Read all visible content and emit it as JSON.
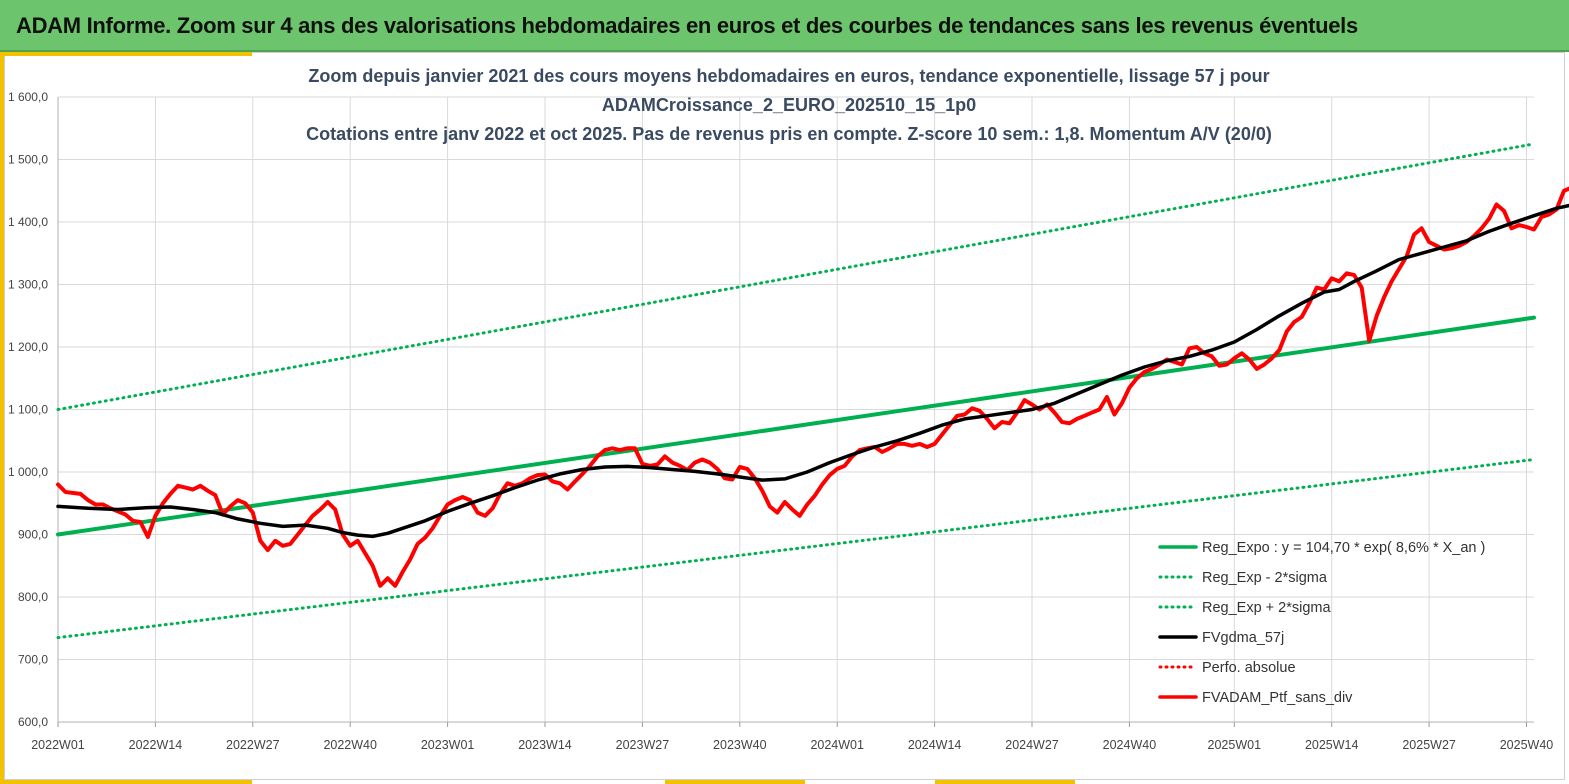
{
  "header": {
    "title": "ADAM Informe. Zoom sur 4 ans des valorisations hebdomadaires en euros et des courbes de tendances sans les revenus éventuels"
  },
  "colors": {
    "header_bg": "#6cc46c",
    "accent": "#f2c200",
    "green": "#00b050",
    "red": "#ff0000",
    "black": "#000000"
  },
  "chart_data": {
    "type": "line",
    "title": [
      "Zoom depuis janvier 2021 des cours moyens hebdomadaires  en euros, tendance exponentielle, lissage 57 j pour",
      "ADAMCroissance_2_EURO_202510_15_1p0",
      "Cotations  entre janv 2022 et oct 2025. Pas de revenus pris en compte. Z-score 10 sem.: 1,8. Momentum A/V (20/0)"
    ],
    "x_range": [
      0,
      197
    ],
    "ylim": [
      600,
      1600
    ],
    "y_ticks": [
      "600,0",
      "700,0",
      "800,0",
      "900,0",
      "1 000,0",
      "1 100,0",
      "1 200,0",
      "1 300,0",
      "1 400,0",
      "1 500,0",
      "1 600,0"
    ],
    "x_ticks": [
      {
        "index": 0,
        "label": "2022W01"
      },
      {
        "index": 13,
        "label": "2022W14"
      },
      {
        "index": 26,
        "label": "2022W27"
      },
      {
        "index": 39,
        "label": "2022W40"
      },
      {
        "index": 52,
        "label": "2023W01"
      },
      {
        "index": 65,
        "label": "2023W14"
      },
      {
        "index": 78,
        "label": "2023W27"
      },
      {
        "index": 91,
        "label": "2023W40"
      },
      {
        "index": 104,
        "label": "2024W01"
      },
      {
        "index": 117,
        "label": "2024W14"
      },
      {
        "index": 130,
        "label": "2024W27"
      },
      {
        "index": 143,
        "label": "2024W40"
      },
      {
        "index": 157,
        "label": "2025W01"
      },
      {
        "index": 170,
        "label": "2025W14"
      },
      {
        "index": 183,
        "label": "2025W27"
      },
      {
        "index": 196,
        "label": "2025W40"
      }
    ],
    "grid": true,
    "legend_position": "bottom-right",
    "series": [
      {
        "name": "Reg_Expo : y = 104,70 * exp( 8,6% *  X_an )",
        "color": "#00b050",
        "style": "solid",
        "width": 4,
        "points": [
          [
            0,
            900
          ],
          [
            197,
            1247
          ]
        ]
      },
      {
        "name": "Reg_Exp - 2*sigma",
        "color": "#00b050",
        "style": "dotted",
        "width": 3,
        "points": [
          [
            0,
            735
          ],
          [
            197,
            1020
          ]
        ]
      },
      {
        "name": "Reg_Exp + 2*sigma",
        "color": "#00b050",
        "style": "dotted",
        "width": 3,
        "points": [
          [
            0,
            1100
          ],
          [
            197,
            1525
          ]
        ]
      },
      {
        "name": "FVgdma_57j",
        "color": "#000000",
        "style": "solid",
        "width": 3.5,
        "points": [
          [
            0,
            945
          ],
          [
            4,
            942
          ],
          [
            8,
            940
          ],
          [
            12,
            943
          ],
          [
            15,
            944
          ],
          [
            18,
            940
          ],
          [
            21,
            935
          ],
          [
            24,
            925
          ],
          [
            27,
            918
          ],
          [
            30,
            913
          ],
          [
            33,
            915
          ],
          [
            36,
            910
          ],
          [
            38,
            903
          ],
          [
            40,
            899
          ],
          [
            42,
            897
          ],
          [
            44,
            902
          ],
          [
            46,
            910
          ],
          [
            49,
            922
          ],
          [
            52,
            937
          ],
          [
            55,
            950
          ],
          [
            58,
            962
          ],
          [
            61,
            975
          ],
          [
            64,
            987
          ],
          [
            67,
            997
          ],
          [
            70,
            1004
          ],
          [
            73,
            1008
          ],
          [
            76,
            1009
          ],
          [
            79,
            1007
          ],
          [
            82,
            1004
          ],
          [
            85,
            1001
          ],
          [
            88,
            997
          ],
          [
            91,
            992
          ],
          [
            94,
            987
          ],
          [
            97,
            989
          ],
          [
            100,
            1000
          ],
          [
            103,
            1015
          ],
          [
            106,
            1028
          ],
          [
            109,
            1040
          ],
          [
            112,
            1050
          ],
          [
            115,
            1062
          ],
          [
            118,
            1075
          ],
          [
            121,
            1085
          ],
          [
            124,
            1090
          ],
          [
            127,
            1095
          ],
          [
            130,
            1100
          ],
          [
            133,
            1110
          ],
          [
            136,
            1125
          ],
          [
            139,
            1140
          ],
          [
            142,
            1155
          ],
          [
            145,
            1168
          ],
          [
            148,
            1178
          ],
          [
            151,
            1185
          ],
          [
            154,
            1195
          ],
          [
            157,
            1208
          ],
          [
            160,
            1228
          ],
          [
            163,
            1250
          ],
          [
            166,
            1270
          ],
          [
            169,
            1288
          ],
          [
            171,
            1292
          ],
          [
            173,
            1305
          ],
          [
            176,
            1322
          ],
          [
            179,
            1340
          ],
          [
            182,
            1350
          ],
          [
            185,
            1360
          ],
          [
            188,
            1370
          ],
          [
            191,
            1385
          ],
          [
            194,
            1398
          ],
          [
            197,
            1410
          ],
          [
            200,
            1422
          ],
          [
            203,
            1430
          ]
        ]
      },
      {
        "name": "Perfo. absolue",
        "color": "#ff0000",
        "style": "dotted",
        "width": 3,
        "points": []
      },
      {
        "name": "FVADAM_Ptf_sans_div",
        "color": "#ff0000",
        "style": "solid",
        "width": 4,
        "points": [
          [
            0,
            980
          ],
          [
            1,
            968
          ],
          [
            3,
            965
          ],
          [
            4,
            955
          ],
          [
            5,
            948
          ],
          [
            6,
            948
          ],
          [
            7,
            942
          ],
          [
            8,
            937
          ],
          [
            9,
            932
          ],
          [
            10,
            922
          ],
          [
            11,
            920
          ],
          [
            12,
            896
          ],
          [
            13,
            930
          ],
          [
            14,
            950
          ],
          [
            15,
            965
          ],
          [
            16,
            978
          ],
          [
            17,
            975
          ],
          [
            18,
            972
          ],
          [
            19,
            978
          ],
          [
            20,
            970
          ],
          [
            21,
            963
          ],
          [
            22,
            932
          ],
          [
            23,
            945
          ],
          [
            24,
            955
          ],
          [
            25,
            950
          ],
          [
            26,
            935
          ],
          [
            27,
            890
          ],
          [
            28,
            875
          ],
          [
            29,
            890
          ],
          [
            30,
            882
          ],
          [
            31,
            885
          ],
          [
            32,
            900
          ],
          [
            33,
            915
          ],
          [
            34,
            930
          ],
          [
            35,
            940
          ],
          [
            36,
            952
          ],
          [
            37,
            940
          ],
          [
            38,
            900
          ],
          [
            39,
            882
          ],
          [
            40,
            890
          ],
          [
            41,
            870
          ],
          [
            42,
            850
          ],
          [
            43,
            818
          ],
          [
            44,
            830
          ],
          [
            45,
            818
          ],
          [
            46,
            840
          ],
          [
            47,
            860
          ],
          [
            48,
            885
          ],
          [
            49,
            895
          ],
          [
            50,
            910
          ],
          [
            51,
            930
          ],
          [
            52,
            948
          ],
          [
            53,
            955
          ],
          [
            54,
            960
          ],
          [
            55,
            955
          ],
          [
            56,
            935
          ],
          [
            57,
            930
          ],
          [
            58,
            942
          ],
          [
            59,
            965
          ],
          [
            60,
            982
          ],
          [
            61,
            978
          ],
          [
            62,
            982
          ],
          [
            63,
            990
          ],
          [
            64,
            995
          ],
          [
            65,
            996
          ],
          [
            66,
            985
          ],
          [
            67,
            982
          ],
          [
            68,
            972
          ],
          [
            69,
            985
          ],
          [
            70,
            997
          ],
          [
            71,
            1010
          ],
          [
            72,
            1025
          ],
          [
            73,
            1035
          ],
          [
            74,
            1038
          ],
          [
            75,
            1035
          ],
          [
            76,
            1038
          ],
          [
            77,
            1038
          ],
          [
            78,
            1013
          ],
          [
            79,
            1010
          ],
          [
            80,
            1012
          ],
          [
            81,
            1025
          ],
          [
            82,
            1015
          ],
          [
            83,
            1010
          ],
          [
            84,
            1003
          ],
          [
            85,
            1015
          ],
          [
            86,
            1020
          ],
          [
            87,
            1015
          ],
          [
            88,
            1005
          ],
          [
            89,
            990
          ],
          [
            90,
            988
          ],
          [
            91,
            1008
          ],
          [
            92,
            1005
          ],
          [
            93,
            990
          ],
          [
            94,
            970
          ],
          [
            95,
            945
          ],
          [
            96,
            935
          ],
          [
            97,
            952
          ],
          [
            98,
            940
          ],
          [
            99,
            930
          ],
          [
            100,
            948
          ],
          [
            101,
            962
          ],
          [
            102,
            980
          ],
          [
            103,
            995
          ],
          [
            104,
            1005
          ],
          [
            105,
            1010
          ],
          [
            106,
            1025
          ],
          [
            107,
            1035
          ],
          [
            108,
            1038
          ],
          [
            109,
            1040
          ],
          [
            110,
            1032
          ],
          [
            111,
            1038
          ],
          [
            112,
            1045
          ],
          [
            113,
            1045
          ],
          [
            114,
            1042
          ],
          [
            115,
            1045
          ],
          [
            116,
            1040
          ],
          [
            117,
            1045
          ],
          [
            118,
            1060
          ],
          [
            119,
            1075
          ],
          [
            120,
            1090
          ],
          [
            121,
            1092
          ],
          [
            122,
            1102
          ],
          [
            123,
            1098
          ],
          [
            124,
            1085
          ],
          [
            125,
            1070
          ],
          [
            126,
            1080
          ],
          [
            127,
            1078
          ],
          [
            128,
            1095
          ],
          [
            129,
            1115
          ],
          [
            130,
            1108
          ],
          [
            131,
            1100
          ],
          [
            132,
            1108
          ],
          [
            133,
            1095
          ],
          [
            134,
            1080
          ],
          [
            135,
            1078
          ],
          [
            136,
            1085
          ],
          [
            137,
            1090
          ],
          [
            138,
            1095
          ],
          [
            139,
            1100
          ],
          [
            140,
            1120
          ],
          [
            141,
            1092
          ],
          [
            142,
            1110
          ],
          [
            143,
            1135
          ],
          [
            144,
            1150
          ],
          [
            145,
            1160
          ],
          [
            146,
            1165
          ],
          [
            147,
            1172
          ],
          [
            148,
            1180
          ],
          [
            149,
            1176
          ],
          [
            150,
            1172
          ],
          [
            151,
            1198
          ],
          [
            152,
            1200
          ],
          [
            153,
            1190
          ],
          [
            154,
            1185
          ],
          [
            155,
            1170
          ],
          [
            156,
            1172
          ],
          [
            157,
            1182
          ],
          [
            158,
            1190
          ],
          [
            159,
            1180
          ],
          [
            160,
            1165
          ],
          [
            161,
            1172
          ],
          [
            162,
            1182
          ],
          [
            163,
            1195
          ],
          [
            164,
            1225
          ],
          [
            165,
            1240
          ],
          [
            166,
            1248
          ],
          [
            167,
            1270
          ],
          [
            168,
            1295
          ],
          [
            169,
            1292
          ],
          [
            170,
            1310
          ],
          [
            171,
            1305
          ],
          [
            172,
            1318
          ],
          [
            173,
            1315
          ],
          [
            174,
            1295
          ],
          [
            175,
            1210
          ],
          [
            176,
            1250
          ],
          [
            177,
            1280
          ],
          [
            178,
            1305
          ],
          [
            179,
            1325
          ],
          [
            180,
            1345
          ],
          [
            181,
            1380
          ],
          [
            182,
            1390
          ],
          [
            183,
            1368
          ],
          [
            184,
            1362
          ],
          [
            185,
            1356
          ],
          [
            186,
            1358
          ],
          [
            187,
            1362
          ],
          [
            188,
            1368
          ],
          [
            189,
            1378
          ],
          [
            190,
            1390
          ],
          [
            191,
            1405
          ],
          [
            192,
            1428
          ],
          [
            193,
            1418
          ],
          [
            194,
            1390
          ],
          [
            195,
            1395
          ],
          [
            196,
            1392
          ],
          [
            197,
            1388
          ],
          [
            198,
            1408
          ],
          [
            199,
            1412
          ],
          [
            200,
            1420
          ],
          [
            201,
            1450
          ],
          [
            202,
            1455
          ]
        ]
      }
    ]
  }
}
